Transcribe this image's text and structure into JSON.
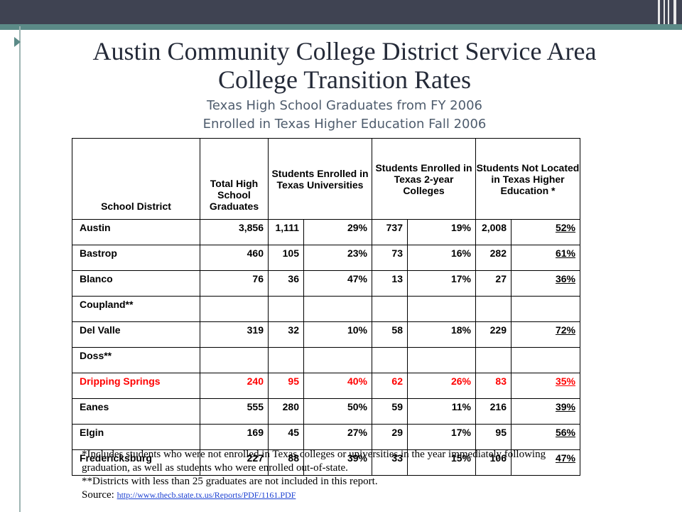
{
  "title_line1": "Austin Community College District Service Area",
  "title_line2": "College Transition Rates",
  "subtitle_line1": "Texas High School Graduates from FY 2006",
  "subtitle_line2": "Enrolled in Texas Higher Education Fall 2006",
  "table": {
    "headers": {
      "district": "School District",
      "graduates": "Total High School Graduates",
      "universities": "Students Enrolled in Texas Universities",
      "colleges": "Students Enrolled in Texas 2-year Colleges",
      "not_located": "Students Not Located in Texas Higher Education *"
    },
    "rows": [
      {
        "district": "Austin",
        "graduates": "3,856",
        "univ_n": "1,111",
        "univ_pct": "29%",
        "coll_n": "737",
        "coll_pct": "19%",
        "nl_n": "2,008",
        "nl_pct": "52%",
        "highlight": false
      },
      {
        "district": "Bastrop",
        "graduates": "460",
        "univ_n": "105",
        "univ_pct": "23%",
        "coll_n": "73",
        "coll_pct": "16%",
        "nl_n": "282",
        "nl_pct": "61%",
        "highlight": false
      },
      {
        "district": "Blanco",
        "graduates": "76",
        "univ_n": "36",
        "univ_pct": "47%",
        "coll_n": "13",
        "coll_pct": "17%",
        "nl_n": "27",
        "nl_pct": "36%",
        "highlight": false
      },
      {
        "district": "Coupland**",
        "graduates": "",
        "univ_n": "",
        "univ_pct": "",
        "coll_n": "",
        "coll_pct": "",
        "nl_n": "",
        "nl_pct": "",
        "highlight": false
      },
      {
        "district": "Del Valle",
        "graduates": "319",
        "univ_n": "32",
        "univ_pct": "10%",
        "coll_n": "58",
        "coll_pct": "18%",
        "nl_n": "229",
        "nl_pct": "72%",
        "highlight": false
      },
      {
        "district": "Doss**",
        "graduates": "",
        "univ_n": "",
        "univ_pct": "",
        "coll_n": "",
        "coll_pct": "",
        "nl_n": "",
        "nl_pct": "",
        "highlight": false
      },
      {
        "district": "Dripping Springs",
        "graduates": "240",
        "univ_n": "95",
        "univ_pct": "40%",
        "coll_n": "62",
        "coll_pct": "26%",
        "nl_n": "83",
        "nl_pct": "35%",
        "highlight": true
      },
      {
        "district": "Eanes",
        "graduates": "555",
        "univ_n": "280",
        "univ_pct": "50%",
        "coll_n": "59",
        "coll_pct": "11%",
        "nl_n": "216",
        "nl_pct": "39%",
        "highlight": false
      },
      {
        "district": "Elgin",
        "graduates": "169",
        "univ_n": "45",
        "univ_pct": "27%",
        "coll_n": "29",
        "coll_pct": "17%",
        "nl_n": "95",
        "nl_pct": "56%",
        "highlight": false
      },
      {
        "district": "Fredericksburg",
        "graduates": "227",
        "univ_n": "88",
        "univ_pct": "39%",
        "coll_n": "33",
        "coll_pct": "15%",
        "nl_n": "106",
        "nl_pct": "47%",
        "highlight": false
      }
    ]
  },
  "notes": {
    "note1": "*Includes students who were not enrolled in Texas colleges or universities in the year immediately following graduation, as well as students who were enrolled out-of-state.",
    "note2": "**Districts with less than 25 graduates are not included in this report.",
    "source_label": "Source: ",
    "source_link": "http://www.thecb.state.tx.us/Reports/PDF/1161.PDF"
  },
  "colors": {
    "header_band": "#3f4352",
    "accent_teal": "#5b8a87",
    "highlight_row": "#ff0000",
    "link": "#1a3fd1"
  }
}
